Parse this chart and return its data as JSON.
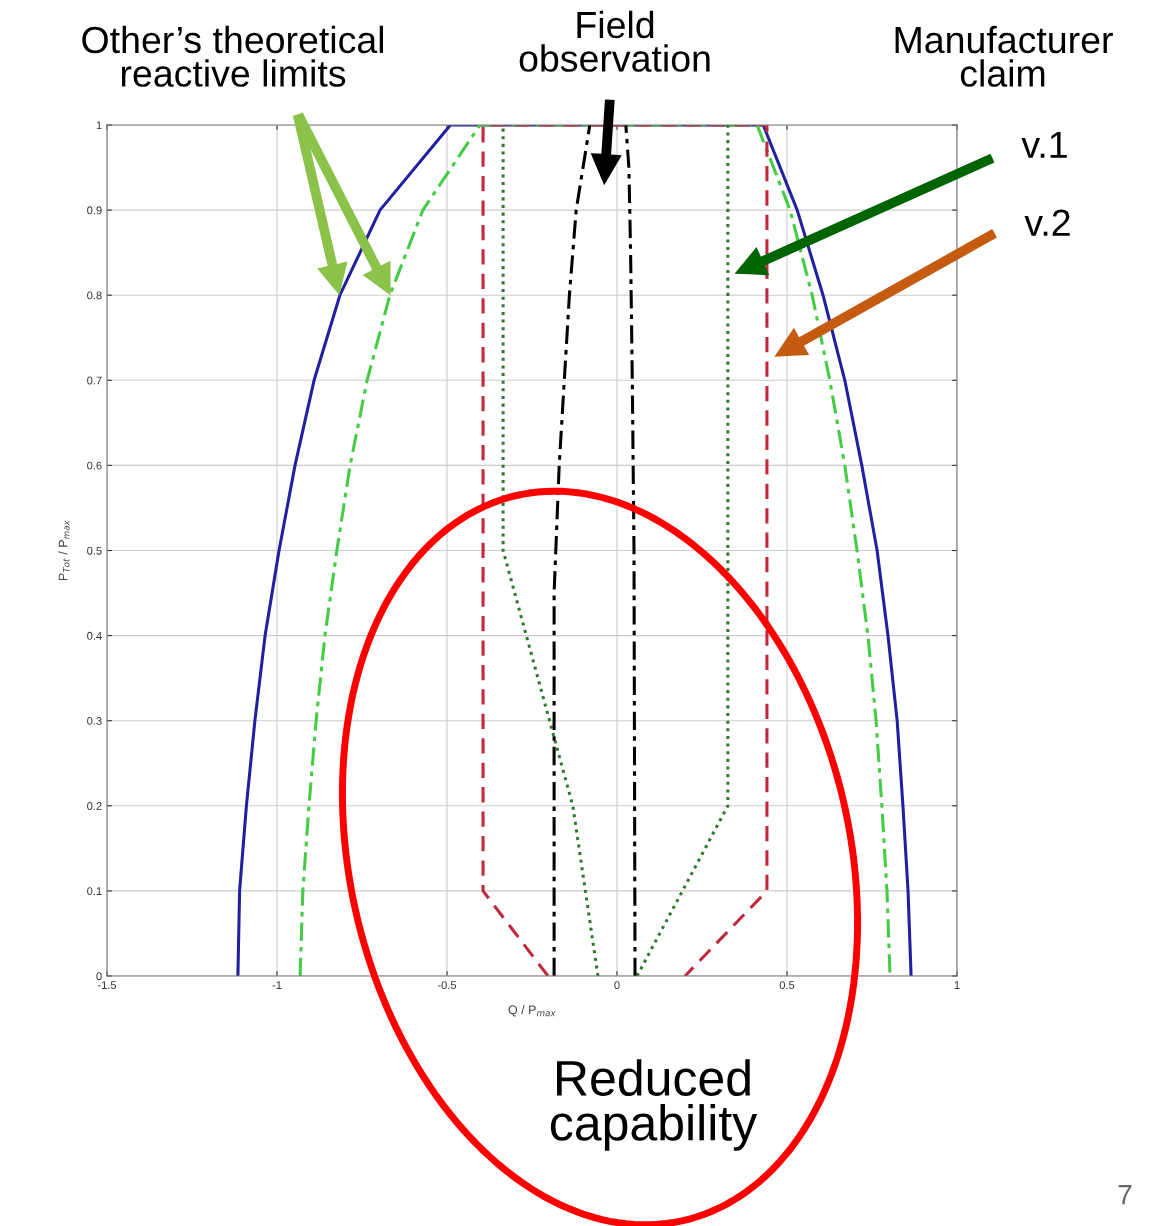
{
  "chart_data": {
    "type": "line",
    "xlabel": "Q / P$_{max}$",
    "ylabel": "P$_{Tot}$ / P$_{max}$",
    "xlim": [
      -1.5,
      1
    ],
    "xticks": [
      -1.5,
      -1,
      -0.5,
      0,
      0.5,
      1
    ],
    "ylim": [
      0,
      1
    ],
    "yticks": [
      0,
      0.1,
      0.2,
      0.3,
      0.4,
      0.5,
      0.6,
      0.7,
      0.8,
      0.9,
      1
    ],
    "grid": true,
    "legend": false,
    "marker": "none",
    "series": [
      {
        "color": "#2020a0",
        "line_style": "solid",
        "x": [
          -1.115,
          -1.11,
          -1.09,
          -1.065,
          -1.035,
          -0.994,
          -0.947,
          -0.891,
          -0.815,
          -0.697,
          -0.49,
          0.43,
          0.53,
          0.606,
          0.67,
          0.72,
          0.765,
          0.797,
          0.824,
          0.841,
          0.856,
          0.865
        ],
        "values": [
          0,
          0.1,
          0.2,
          0.3,
          0.4,
          0.5,
          0.6,
          0.7,
          0.8,
          0.9,
          1,
          1,
          0.9,
          0.8,
          0.7,
          0.6,
          0.5,
          0.4,
          0.3,
          0.2,
          0.1,
          0
        ]
      },
      {
        "color": "#44cc44",
        "line_style": "dashdot",
        "x": [
          -0.932,
          -0.924,
          -0.906,
          -0.885,
          -0.859,
          -0.824,
          -0.785,
          -0.735,
          -0.668,
          -0.571,
          -0.403,
          0.412,
          0.509,
          0.574,
          0.626,
          0.67,
          0.706,
          0.738,
          0.762,
          0.779,
          0.794,
          0.803
        ],
        "values": [
          0,
          0.1,
          0.2,
          0.3,
          0.4,
          0.5,
          0.6,
          0.7,
          0.8,
          0.9,
          1,
          1,
          0.9,
          0.8,
          0.7,
          0.6,
          0.5,
          0.4,
          0.3,
          0.2,
          0.1,
          0
        ]
      },
      {
        "color": "#c0283c",
        "line_style": "dashed",
        "x": [
          -0.203,
          -0.394,
          -0.394,
          0.441,
          0.441,
          0.2
        ],
        "values": [
          0,
          0.1,
          1,
          1,
          0.1,
          0
        ]
      },
      {
        "color": "#2e7a2e",
        "line_style": "dotted",
        "x": [
          -0.056,
          -0.13,
          -0.335,
          -0.335
        ],
        "values": [
          0,
          0.2,
          0.5,
          1
        ]
      },
      {
        "color": "#2e7a2e",
        "line_style": "dotted",
        "x": [
          0.059,
          0.326,
          0.326
        ],
        "values": [
          0,
          0.2,
          1
        ]
      },
      {
        "color": "#000000",
        "line_style": "dashdot",
        "x": [
          -0.185,
          -0.185,
          -0.17,
          -0.14,
          -0.12,
          -0.08
        ],
        "values": [
          0,
          0.45,
          0.6,
          0.8,
          0.9,
          1
        ]
      },
      {
        "color": "#000000",
        "line_style": "dashdot",
        "x": [
          0.053,
          0.05,
          0.045,
          0.04,
          0.035,
          0.026
        ],
        "values": [
          0,
          0.5,
          0.7,
          0.85,
          0.95,
          1
        ]
      }
    ],
    "annotations": [
      "Other’s theoretical\nreactive limits",
      "Field\nobservation",
      "Manufacturer\nclaim",
      "v.1",
      "v.2",
      "Reduced\ncapability",
      "7"
    ]
  }
}
